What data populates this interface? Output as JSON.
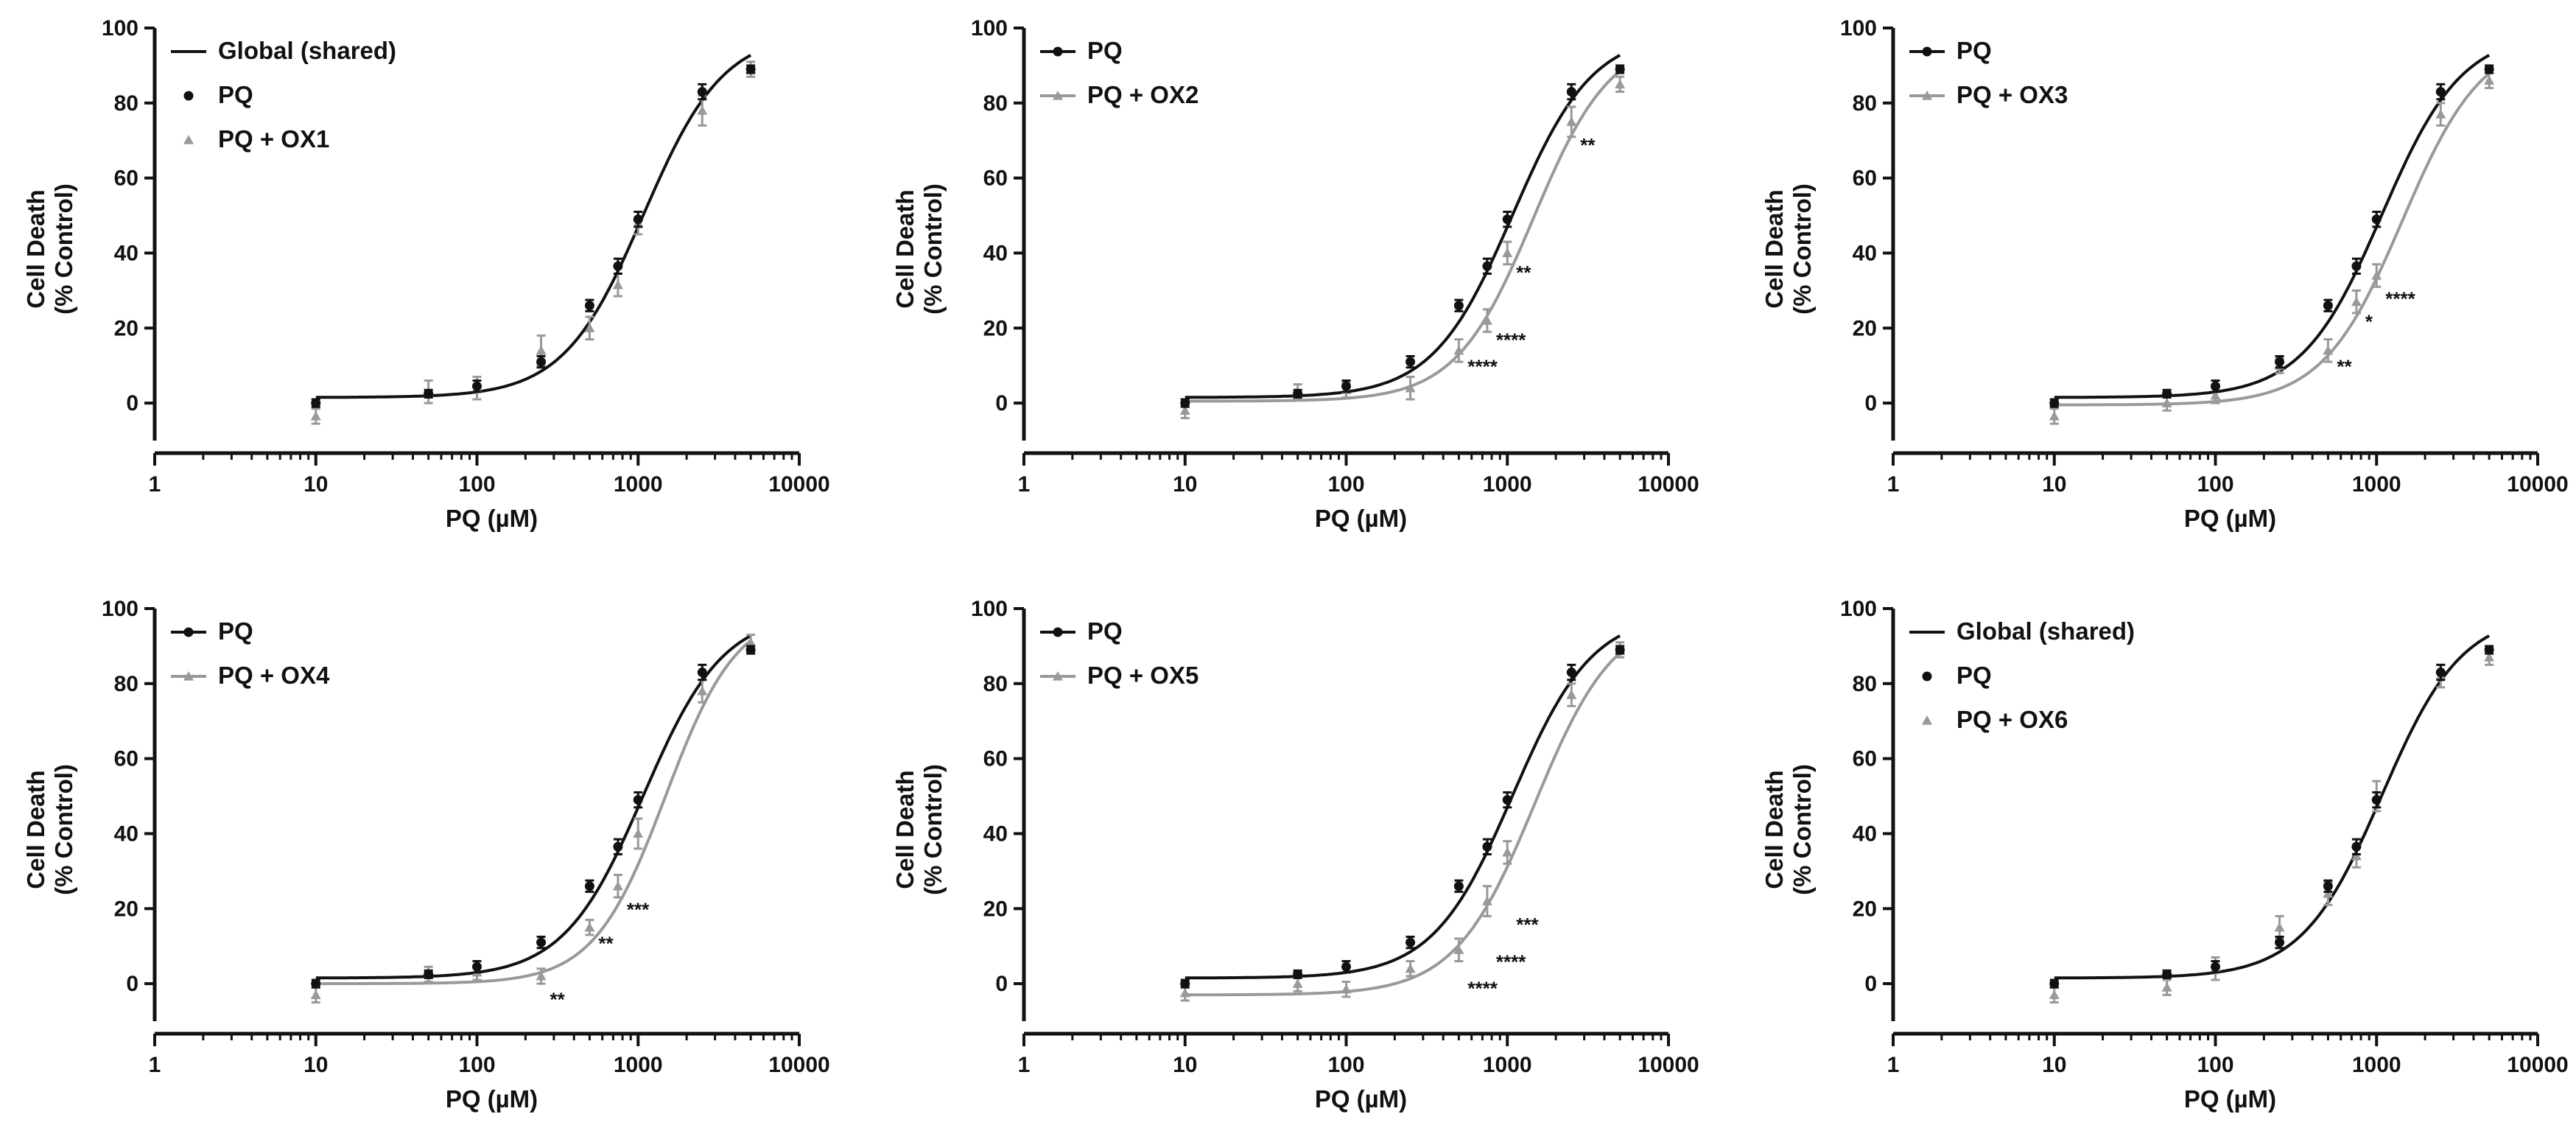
{
  "colors": {
    "pq": "#111111",
    "ox": "#999999",
    "global": "#111111"
  },
  "chart_data": [
    {
      "type": "line",
      "x_scale": "log",
      "xlim": [
        1,
        10000
      ],
      "ylim": [
        -10,
        100
      ],
      "xticks": [
        "1",
        "10",
        "100",
        "1000",
        "10000"
      ],
      "yticks": [
        "0",
        "20",
        "40",
        "60",
        "80",
        "100"
      ],
      "xlabel": "PQ (µM)",
      "ylabel_line1": "Cell Death",
      "ylabel_line2": "(% Control)",
      "fit": "global",
      "legend": [
        "Global (shared)",
        "PQ",
        "PQ + OX1"
      ],
      "series": [
        {
          "name": "PQ",
          "x": [
            10,
            50,
            100,
            250,
            500,
            750,
            1000,
            2500,
            5000
          ],
          "y": [
            0,
            2.5,
            4.5,
            11,
            26,
            36.5,
            49,
            83,
            89
          ],
          "err": [
            1,
            1,
            1.5,
            1.5,
            1.5,
            2,
            2,
            2,
            1
          ],
          "fit_ec50": 1080,
          "fit_bottom": 1.5,
          "fit_top": 99,
          "fit_hill": 1.75
        },
        {
          "name": "PQ + OX1",
          "x": [
            10,
            50,
            100,
            250,
            500,
            750,
            1000,
            2500,
            5000
          ],
          "y": [
            -3.5,
            3,
            4,
            14,
            20,
            31.5,
            48,
            78,
            89
          ],
          "err": [
            2,
            3,
            3,
            4,
            3,
            3,
            3,
            4,
            2
          ]
        }
      ],
      "annotations": []
    },
    {
      "type": "line",
      "x_scale": "log",
      "xlim": [
        1,
        10000
      ],
      "ylim": [
        -10,
        100
      ],
      "xticks": [
        "1",
        "10",
        "100",
        "1000",
        "10000"
      ],
      "yticks": [
        "0",
        "20",
        "40",
        "60",
        "80",
        "100"
      ],
      "xlabel": "PQ (µM)",
      "ylabel_line1": "Cell Death",
      "ylabel_line2": "(% Control)",
      "fit": "separate",
      "legend": [
        "PQ",
        "PQ + OX2"
      ],
      "series": [
        {
          "name": "PQ",
          "x": [
            10,
            50,
            100,
            250,
            500,
            750,
            1000,
            2500,
            5000
          ],
          "y": [
            0,
            2.5,
            4.5,
            11,
            26,
            36.5,
            49,
            83,
            89
          ],
          "err": [
            1,
            1,
            1.5,
            1.5,
            1.5,
            2,
            2,
            2,
            1
          ],
          "fit_ec50": 1080,
          "fit_bottom": 1.5,
          "fit_top": 99,
          "fit_hill": 1.75
        },
        {
          "name": "PQ + OX2",
          "x": [
            10,
            50,
            100,
            250,
            500,
            750,
            1000,
            2500,
            5000
          ],
          "y": [
            -2,
            3,
            3.5,
            4,
            14,
            22,
            40,
            75,
            85
          ],
          "err": [
            2,
            2,
            2,
            3,
            3,
            3,
            3,
            4,
            2
          ],
          "fit_ec50": 1450,
          "fit_bottom": 0.5,
          "fit_top": 98,
          "fit_hill": 1.8
        }
      ],
      "annotations": [
        {
          "label": "**",
          "x": 2500,
          "y": 67
        },
        {
          "label": "**",
          "x": 1000,
          "y": 33
        },
        {
          "label": "****",
          "x": 750,
          "y": 15
        },
        {
          "label": "****",
          "x": 500,
          "y": 8
        }
      ]
    },
    {
      "type": "line",
      "x_scale": "log",
      "xlim": [
        1,
        10000
      ],
      "ylim": [
        -10,
        100
      ],
      "xticks": [
        "1",
        "10",
        "100",
        "1000",
        "10000"
      ],
      "yticks": [
        "0",
        "20",
        "40",
        "60",
        "80",
        "100"
      ],
      "xlabel": "PQ (µM)",
      "ylabel_line1": "Cell Death",
      "ylabel_line2": "(% Control)",
      "fit": "separate",
      "legend": [
        "PQ",
        "PQ + OX3"
      ],
      "series": [
        {
          "name": "PQ",
          "x": [
            10,
            50,
            100,
            250,
            500,
            750,
            1000,
            2500,
            5000
          ],
          "y": [
            0,
            2.5,
            4.5,
            11,
            26,
            36.5,
            49,
            83,
            89
          ],
          "err": [
            1,
            1,
            1.5,
            1.5,
            1.5,
            2,
            2,
            2,
            1
          ],
          "fit_ec50": 1080,
          "fit_bottom": 1.5,
          "fit_top": 99,
          "fit_hill": 1.75
        },
        {
          "name": "PQ + OX3",
          "x": [
            10,
            50,
            100,
            250,
            500,
            750,
            1000,
            2500,
            5000
          ],
          "y": [
            -3.5,
            0,
            2,
            10,
            14,
            27,
            34,
            77,
            86
          ],
          "err": [
            2,
            2,
            2,
            2,
            3,
            3,
            3,
            3,
            2
          ],
          "fit_ec50": 1450,
          "fit_bottom": -0.5,
          "fit_top": 98,
          "fit_hill": 1.75
        }
      ],
      "annotations": [
        {
          "label": "****",
          "x": 1000,
          "y": 26
        },
        {
          "label": "*",
          "x": 750,
          "y": 20
        },
        {
          "label": "**",
          "x": 500,
          "y": 8
        }
      ]
    },
    {
      "type": "line",
      "x_scale": "log",
      "xlim": [
        1,
        10000
      ],
      "ylim": [
        -10,
        100
      ],
      "xticks": [
        "1",
        "10",
        "100",
        "1000",
        "10000"
      ],
      "yticks": [
        "0",
        "20",
        "40",
        "60",
        "80",
        "100"
      ],
      "xlabel": "PQ (µM)",
      "ylabel_line1": "Cell Death",
      "ylabel_line2": "(% Control)",
      "fit": "separate",
      "legend": [
        "PQ",
        "PQ + OX4"
      ],
      "series": [
        {
          "name": "PQ",
          "x": [
            10,
            50,
            100,
            250,
            500,
            750,
            1000,
            2500,
            5000
          ],
          "y": [
            0,
            2.5,
            4.5,
            11,
            26,
            36.5,
            49,
            83,
            89
          ],
          "err": [
            1,
            1,
            1.5,
            1.5,
            1.5,
            2,
            2,
            2,
            1
          ],
          "fit_ec50": 1080,
          "fit_bottom": 1.5,
          "fit_top": 99,
          "fit_hill": 1.75
        },
        {
          "name": "PQ + OX4",
          "x": [
            10,
            50,
            100,
            250,
            500,
            750,
            1000,
            2500,
            5000
          ],
          "y": [
            -3,
            2.5,
            3,
            2,
            15,
            26,
            40,
            78,
            91
          ],
          "err": [
            2,
            2,
            2,
            2,
            2,
            3,
            4,
            3,
            2
          ],
          "fit_ec50": 1480,
          "fit_bottom": 0,
          "fit_top": 100,
          "fit_hill": 1.95
        }
      ],
      "annotations": [
        {
          "label": "***",
          "x": 750,
          "y": 18
        },
        {
          "label": "**",
          "x": 500,
          "y": 9
        },
        {
          "label": "**",
          "x": 250,
          "y": -6
        }
      ]
    },
    {
      "type": "line",
      "x_scale": "log",
      "xlim": [
        1,
        10000
      ],
      "ylim": [
        -10,
        100
      ],
      "xticks": [
        "1",
        "10",
        "100",
        "1000",
        "10000"
      ],
      "yticks": [
        "0",
        "20",
        "40",
        "60",
        "80",
        "100"
      ],
      "xlabel": "PQ (µM)",
      "ylabel_line1": "Cell Death",
      "ylabel_line2": "(% Control)",
      "fit": "separate",
      "legend": [
        "PQ",
        "PQ + OX5"
      ],
      "series": [
        {
          "name": "PQ",
          "x": [
            10,
            50,
            100,
            250,
            500,
            750,
            1000,
            2500,
            5000
          ],
          "y": [
            0,
            2.5,
            4.5,
            11,
            26,
            36.5,
            49,
            83,
            89
          ],
          "err": [
            1,
            1,
            1.5,
            1.5,
            1.5,
            2,
            2,
            2,
            1
          ],
          "fit_ec50": 1080,
          "fit_bottom": 1.5,
          "fit_top": 99,
          "fit_hill": 1.75
        },
        {
          "name": "PQ + OX5",
          "x": [
            10,
            50,
            100,
            250,
            500,
            750,
            1000,
            2500,
            5000
          ],
          "y": [
            -2.5,
            0,
            -1.5,
            4,
            9,
            22,
            35,
            77,
            89
          ],
          "err": [
            2,
            2,
            2,
            2,
            3,
            4,
            3,
            3,
            2
          ],
          "fit_ec50": 1480,
          "fit_bottom": -3,
          "fit_top": 99,
          "fit_hill": 1.75
        }
      ],
      "annotations": [
        {
          "label": "***",
          "x": 1000,
          "y": 14
        },
        {
          "label": "****",
          "x": 750,
          "y": 4
        },
        {
          "label": "****",
          "x": 500,
          "y": -3
        }
      ]
    },
    {
      "type": "line",
      "x_scale": "log",
      "xlim": [
        1,
        10000
      ],
      "ylim": [
        -10,
        100
      ],
      "xticks": [
        "1",
        "10",
        "100",
        "1000",
        "10000"
      ],
      "yticks": [
        "0",
        "20",
        "40",
        "60",
        "80",
        "100"
      ],
      "xlabel": "PQ (µM)",
      "ylabel_line1": "Cell Death",
      "ylabel_line2": "(% Control)",
      "fit": "global",
      "legend": [
        "Global (shared)",
        "PQ",
        "PQ + OX6"
      ],
      "series": [
        {
          "name": "PQ",
          "x": [
            10,
            50,
            100,
            250,
            500,
            750,
            1000,
            2500,
            5000
          ],
          "y": [
            0,
            2.5,
            4.5,
            11,
            26,
            36.5,
            49,
            83,
            89
          ],
          "err": [
            1,
            1,
            1.5,
            1.5,
            1.5,
            2,
            2,
            2,
            1
          ],
          "fit_ec50": 1080,
          "fit_bottom": 1.5,
          "fit_top": 99,
          "fit_hill": 1.75
        },
        {
          "name": "PQ + OX6",
          "x": [
            10,
            50,
            100,
            250,
            500,
            750,
            1000,
            2500,
            5000
          ],
          "y": [
            -3,
            -1,
            4,
            15,
            24,
            34,
            50,
            82,
            87
          ],
          "err": [
            2,
            2,
            3,
            3,
            3,
            3,
            4,
            3,
            2
          ]
        }
      ],
      "annotations": []
    }
  ]
}
